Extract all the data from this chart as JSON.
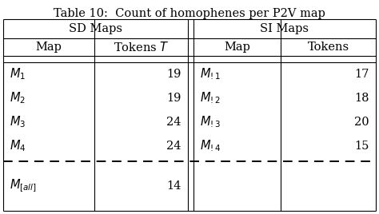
{
  "title": "Table 10:  Count of homophenes per P2V map",
  "col_headers_left": [
    "Map",
    "Tokens $T$"
  ],
  "col_headers_right": [
    "Map",
    "Tokens"
  ],
  "group_header_left": "SD Maps",
  "group_header_right": "SI Maps",
  "sd_rows": [
    [
      "$M_1$",
      "19"
    ],
    [
      "$M_2$",
      "19"
    ],
    [
      "$M_3$",
      "24"
    ],
    [
      "$M_4$",
      "24"
    ]
  ],
  "si_rows": [
    [
      "$M_{!1}$",
      "17"
    ],
    [
      "$M_{!2}$",
      "18"
    ],
    [
      "$M_{!3}$",
      "20"
    ],
    [
      "$M_{!4}$",
      "15"
    ]
  ],
  "all_row_sd": [
    "$M_{[all]}$",
    "14"
  ],
  "background": "#ffffff",
  "text_color": "#000000",
  "title_fontsize": 10.5,
  "header_fontsize": 10.5,
  "data_fontsize": 10.5
}
